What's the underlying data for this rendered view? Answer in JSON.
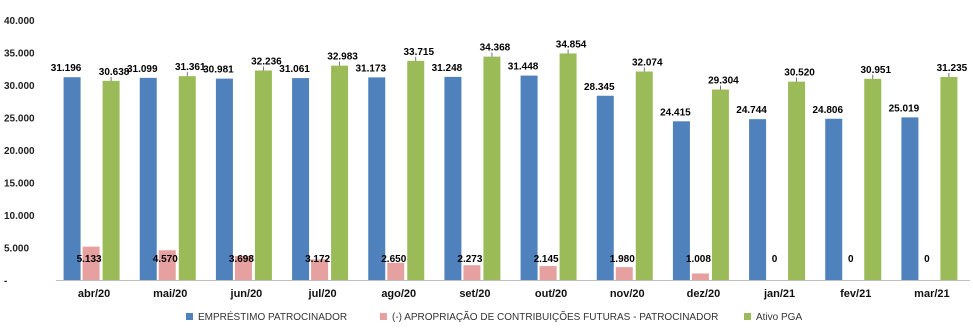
{
  "chart_data": {
    "type": "bar",
    "categories": [
      "abr/20",
      "mai/20",
      "jun/20",
      "jul/20",
      "ago/20",
      "set/20",
      "out/20",
      "nov/20",
      "dez/20",
      "jan/21",
      "fev/21",
      "mar/21"
    ],
    "series": [
      {
        "name": "EMPRÉSTIMO PATROCINADOR",
        "color": "#4f81bd",
        "values": [
          31196,
          31099,
          30981,
          31061,
          31173,
          31248,
          31448,
          28345,
          24415,
          24744,
          24806,
          25019
        ],
        "labels": [
          "31.196",
          "31.099",
          "30.981",
          "31.061",
          "31.173",
          "31.248",
          "31.448",
          "28.345",
          "24.415",
          "24.744",
          "24.806",
          "25.019"
        ]
      },
      {
        "name": "(-) APROPRIAÇÃO DE CONTRIBUIÇÕES FUTURAS - PATROCINADOR",
        "color": "#e6a0a0",
        "values": [
          5133,
          4570,
          3698,
          3172,
          2650,
          2273,
          2145,
          1980,
          1008,
          0,
          0,
          0
        ],
        "labels": [
          "5.133",
          "4.570",
          "3.698",
          "3.172",
          "2.650",
          "2.273",
          "2.145",
          "1.980",
          "1.008",
          "0",
          "0",
          "0"
        ]
      },
      {
        "name": "Ativo PGA",
        "color": "#9bbb59",
        "values": [
          30638,
          31361,
          32236,
          32983,
          33715,
          34368,
          34854,
          32074,
          29304,
          30520,
          30951,
          31235
        ],
        "labels": [
          "30.638",
          "31.361",
          "32.236",
          "32.983",
          "33.715",
          "34.368",
          "34.854",
          "32.074",
          "29.304",
          "30.520",
          "30.951",
          "31.235"
        ]
      }
    ],
    "yticks": [
      {
        "value": 0,
        "label": "-"
      },
      {
        "value": 5000,
        "label": "5.000"
      },
      {
        "value": 10000,
        "label": "10.000"
      },
      {
        "value": 15000,
        "label": "15.000"
      },
      {
        "value": 20000,
        "label": "20.000"
      },
      {
        "value": 25000,
        "label": "25.000"
      },
      {
        "value": 30000,
        "label": "30.000"
      },
      {
        "value": 35000,
        "label": "35.000"
      },
      {
        "value": 40000,
        "label": "40.000"
      }
    ],
    "ylim": [
      0,
      40000
    ],
    "grid": false,
    "legend_position": "bottom"
  }
}
